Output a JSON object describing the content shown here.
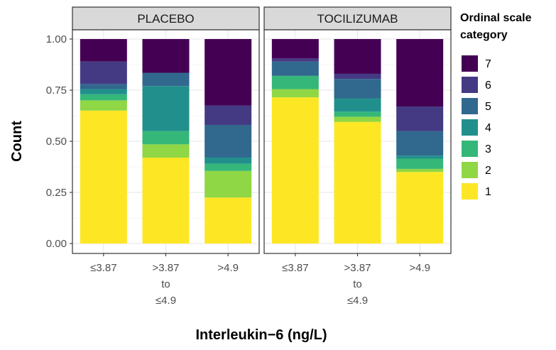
{
  "chart_data": {
    "type": "bar",
    "stacked": true,
    "normalized": true,
    "facets": [
      "PLACEBO",
      "TOCILIZUMAB"
    ],
    "categories": [
      [
        "≤3.87"
      ],
      [
        ">3.87",
        "to",
        "≤4.9"
      ],
      [
        ">4.9"
      ]
    ],
    "xlabel": "Interleukin−6 (ng/L)",
    "ylabel": "Count",
    "ylim": [
      0,
      1
    ],
    "yticks": [
      "0.00",
      "0.25",
      "0.50",
      "0.75",
      "1.00"
    ],
    "grid": true,
    "legend": {
      "title_lines": [
        "Ordinal scale",
        "category"
      ],
      "position": "right",
      "items": [
        {
          "label": "7",
          "color": "#440154"
        },
        {
          "label": "6",
          "color": "#443A83"
        },
        {
          "label": "5",
          "color": "#31688E"
        },
        {
          "label": "4",
          "color": "#21908C"
        },
        {
          "label": "3",
          "color": "#35B779"
        },
        {
          "label": "2",
          "color": "#8FD744"
        },
        {
          "label": "1",
          "color": "#FDE725"
        }
      ]
    },
    "series_order_bottom_to_top": [
      "1",
      "2",
      "3",
      "4",
      "5",
      "6",
      "7"
    ],
    "data": {
      "PLACEBO": [
        {
          "1": 0.65,
          "2": 0.05,
          "3": 0.03,
          "4": 0.025,
          "5": 0.025,
          "6": 0.11,
          "7": 0.11
        },
        {
          "1": 0.42,
          "2": 0.065,
          "3": 0.065,
          "4": 0.22,
          "5": 0.065,
          "6": 0.0,
          "7": 0.165
        },
        {
          "1": 0.225,
          "2": 0.13,
          "3": 0.035,
          "4": 0.03,
          "5": 0.16,
          "6": 0.095,
          "7": 0.325
        }
      ],
      "TOCILIZUMAB": [
        {
          "1": 0.715,
          "2": 0.04,
          "3": 0.065,
          "4": 0.0,
          "5": 0.07,
          "6": 0.015,
          "7": 0.095
        },
        {
          "1": 0.595,
          "2": 0.025,
          "3": 0.025,
          "4": 0.065,
          "5": 0.095,
          "6": 0.025,
          "7": 0.17
        },
        {
          "1": 0.35,
          "2": 0.015,
          "3": 0.05,
          "4": 0.015,
          "5": 0.12,
          "6": 0.12,
          "7": 0.33
        }
      ]
    }
  }
}
